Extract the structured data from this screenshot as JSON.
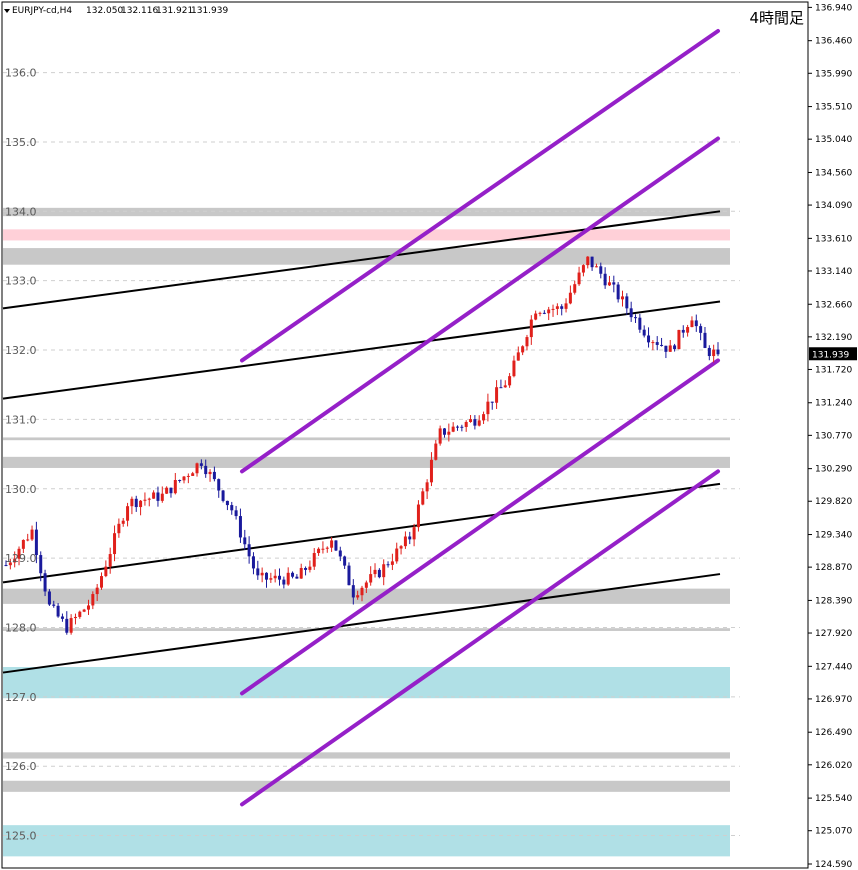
{
  "header": {
    "symbol": "EURJPY-cd,H4",
    "open": "132.050",
    "high": "132.116",
    "low": "131.921",
    "close": "131.939"
  },
  "timeframe_label": "4時間足",
  "current_price_label": "131.939",
  "colors": {
    "bull": "#e0201b",
    "bear": "#1a1a9c",
    "channel": "#9520c8",
    "trend": "#000000",
    "zone_gray": "#c8c8c8",
    "zone_pink": "#ffd0d8",
    "zone_cyan": "#b0e0e6"
  },
  "chart_data": {
    "type": "candlestick",
    "ylim": [
      124.59,
      136.96
    ],
    "right_axis_ticks": [
      "136.940",
      "136.460",
      "135.990",
      "135.510",
      "135.040",
      "134.560",
      "134.090",
      "133.610",
      "133.140",
      "132.660",
      "132.190",
      "131.720",
      "131.240",
      "130.770",
      "130.290",
      "129.820",
      "129.340",
      "128.870",
      "128.390",
      "127.920",
      "127.440",
      "126.970",
      "126.490",
      "126.020",
      "125.540",
      "125.070",
      "124.590"
    ],
    "left_axis_ticks": [
      "136.0",
      "135.0",
      "134.0",
      "133.0",
      "132.0",
      "131.0",
      "130.0",
      "129.0",
      "128.0",
      "127.0",
      "126.0",
      "125.0"
    ],
    "zones": [
      {
        "color": "gray",
        "from": 133.93,
        "to": 134.05
      },
      {
        "color": "pink",
        "from": 133.58,
        "to": 133.74
      },
      {
        "color": "gray",
        "from": 133.23,
        "to": 133.47
      },
      {
        "color": "gray",
        "from": 130.7,
        "to": 130.74
      },
      {
        "color": "gray",
        "from": 130.3,
        "to": 130.46
      },
      {
        "color": "gray",
        "from": 128.34,
        "to": 128.56
      },
      {
        "color": "gray",
        "from": 127.95,
        "to": 127.99
      },
      {
        "color": "cyan",
        "from": 126.98,
        "to": 127.43
      },
      {
        "color": "gray",
        "from": 126.11,
        "to": 126.2
      },
      {
        "color": "gray",
        "from": 125.63,
        "to": 125.79
      },
      {
        "color": "cyan",
        "from": 124.7,
        "to": 125.15
      }
    ],
    "channel_lines": [
      {
        "from": 131.85,
        "to": 136.6
      },
      {
        "from": 130.25,
        "to": 135.05
      },
      {
        "from": 127.05,
        "to": 131.85
      },
      {
        "from": 125.45,
        "to": 130.25
      }
    ],
    "trend_lines": [
      {
        "from": 132.6,
        "to": 134.0
      },
      {
        "from": 131.3,
        "to": 132.7
      },
      {
        "from": 128.65,
        "to": 130.07
      },
      {
        "from": 127.35,
        "to": 128.77
      }
    ],
    "price_waypoints": [
      [
        0,
        128.9
      ],
      [
        6,
        129.4
      ],
      [
        10,
        128.3
      ],
      [
        14,
        128.0
      ],
      [
        20,
        128.4
      ],
      [
        28,
        129.8
      ],
      [
        36,
        129.9
      ],
      [
        45,
        130.4
      ],
      [
        52,
        129.7
      ],
      [
        58,
        128.7
      ],
      [
        67,
        128.7
      ],
      [
        75,
        129.3
      ],
      [
        80,
        128.5
      ],
      [
        86,
        128.8
      ],
      [
        93,
        129.3
      ],
      [
        100,
        130.8
      ],
      [
        108,
        131.0
      ],
      [
        116,
        131.6
      ],
      [
        122,
        132.6
      ],
      [
        128,
        132.6
      ],
      [
        134,
        133.3
      ],
      [
        137,
        133.1
      ],
      [
        142,
        132.7
      ],
      [
        148,
        132.2
      ],
      [
        153,
        132.0
      ],
      [
        158,
        132.5
      ],
      [
        161,
        132.0
      ],
      [
        164,
        131.94
      ]
    ]
  }
}
